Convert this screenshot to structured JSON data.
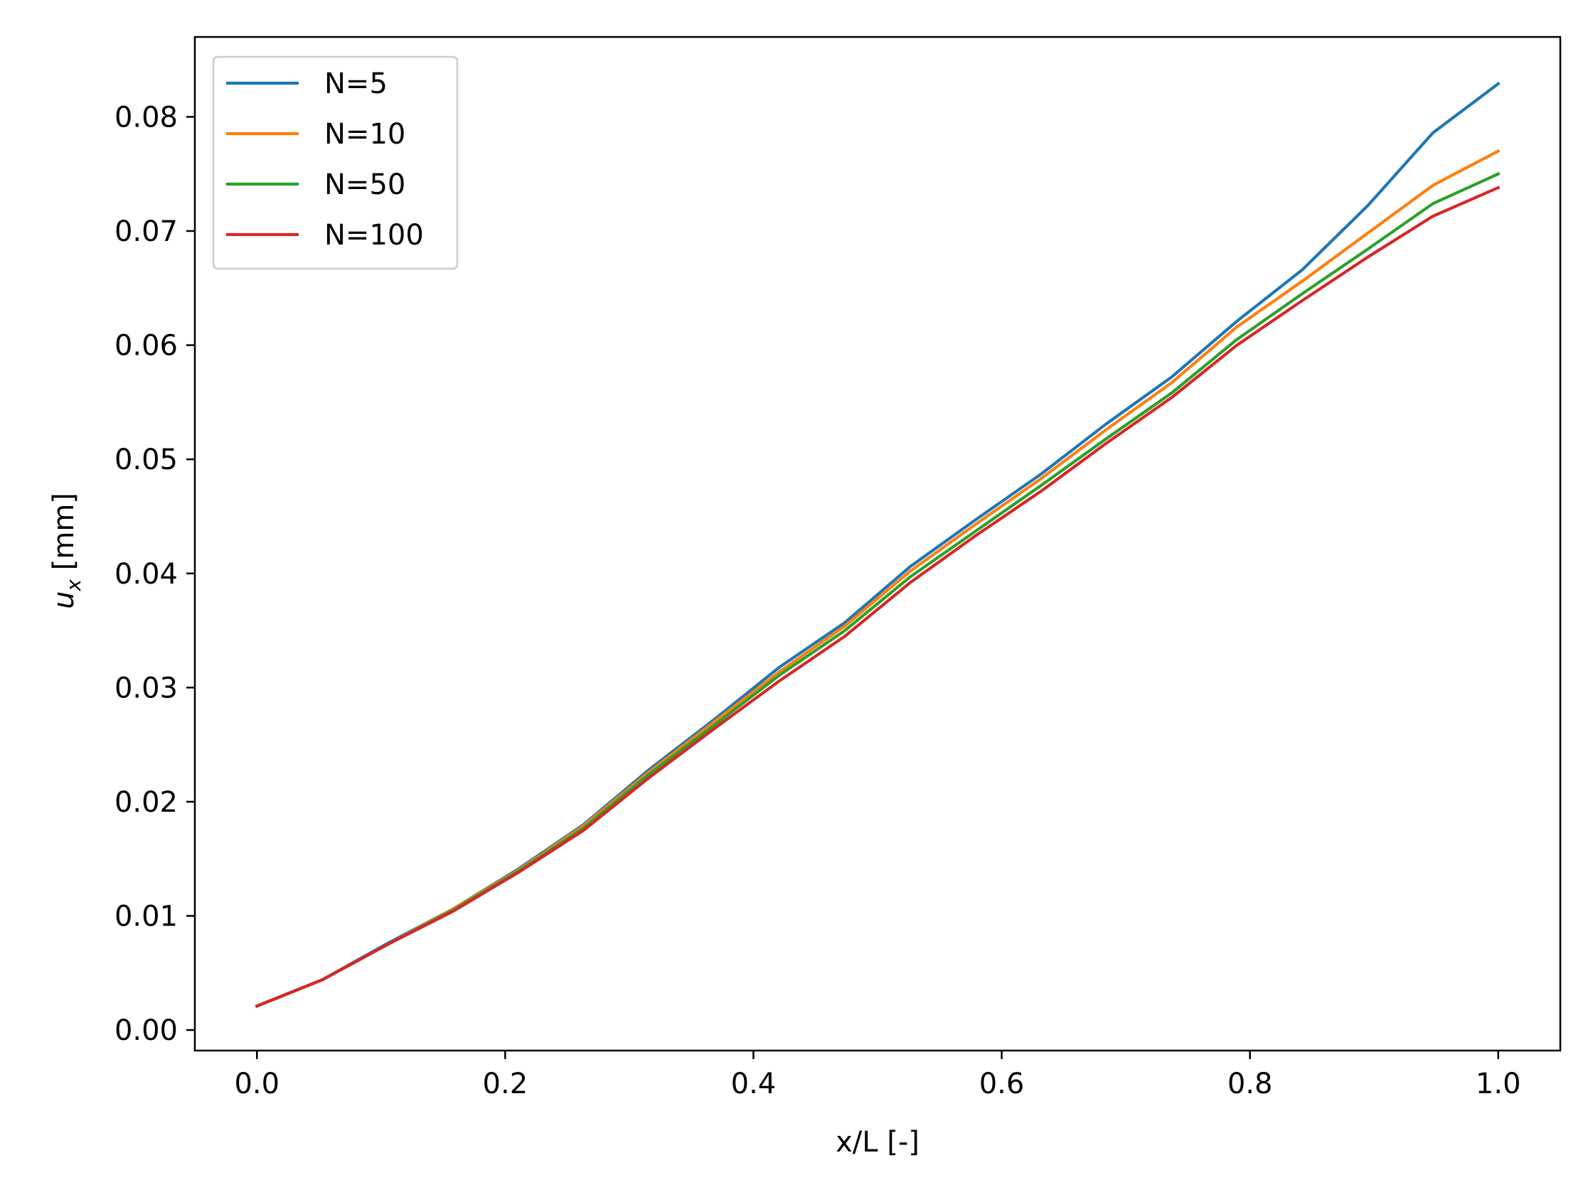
{
  "chart_data": {
    "type": "line",
    "title": "",
    "xlabel": "x/L [-]",
    "ylabel": {
      "symbol": "u",
      "subscript": "x",
      "unit": " [mm]"
    },
    "xlim": [
      -0.05,
      1.05
    ],
    "ylim": [
      -0.0018,
      0.087
    ],
    "x_ticks": [
      0.0,
      0.2,
      0.4,
      0.6,
      0.8,
      1.0
    ],
    "x_tick_labels": [
      "0.0",
      "0.2",
      "0.4",
      "0.6",
      "0.8",
      "1.0"
    ],
    "y_ticks": [
      0.0,
      0.01,
      0.02,
      0.03,
      0.04,
      0.05,
      0.06,
      0.07,
      0.08
    ],
    "y_tick_labels": [
      "0.00",
      "0.01",
      "0.02",
      "0.03",
      "0.04",
      "0.05",
      "0.06",
      "0.07",
      "0.08"
    ],
    "grid": false,
    "legend_position": "upper-left",
    "x": [
      0.0,
      0.0526,
      0.1053,
      0.1579,
      0.2105,
      0.2632,
      0.3158,
      0.3684,
      0.4211,
      0.4737,
      0.5263,
      0.5789,
      0.6316,
      0.6842,
      0.7368,
      0.7895,
      0.8421,
      0.8947,
      0.9474,
      1.0
    ],
    "series": [
      {
        "name": "N=5",
        "color": "#1f77b4",
        "values": [
          0.0021,
          0.0044,
          0.0076,
          0.0106,
          0.0141,
          0.018,
          0.0228,
          0.0272,
          0.0318,
          0.0357,
          0.0406,
          0.0447,
          0.0487,
          0.0531,
          0.0572,
          0.0621,
          0.0666,
          0.0722,
          0.0786,
          0.0829
        ]
      },
      {
        "name": "N=10",
        "color": "#ff7f0e",
        "values": [
          0.0021,
          0.0044,
          0.0075,
          0.0106,
          0.014,
          0.0179,
          0.0226,
          0.027,
          0.0314,
          0.0354,
          0.0402,
          0.0443,
          0.0483,
          0.0526,
          0.0567,
          0.0616,
          0.0656,
          0.0698,
          0.074,
          0.077
        ]
      },
      {
        "name": "N=50",
        "color": "#2ca02c",
        "values": [
          0.0021,
          0.0044,
          0.0075,
          0.0105,
          0.0139,
          0.0177,
          0.0224,
          0.0267,
          0.0311,
          0.035,
          0.0397,
          0.0437,
          0.0477,
          0.0518,
          0.0558,
          0.0605,
          0.0645,
          0.0684,
          0.0724,
          0.075
        ]
      },
      {
        "name": "N=100",
        "color": "#d62728",
        "values": [
          0.0021,
          0.0044,
          0.0075,
          0.0104,
          0.0138,
          0.0175,
          0.0221,
          0.0264,
          0.0306,
          0.0345,
          0.0392,
          0.0433,
          0.0472,
          0.0514,
          0.0554,
          0.06,
          0.0639,
          0.0677,
          0.0713,
          0.0738
        ]
      }
    ]
  }
}
